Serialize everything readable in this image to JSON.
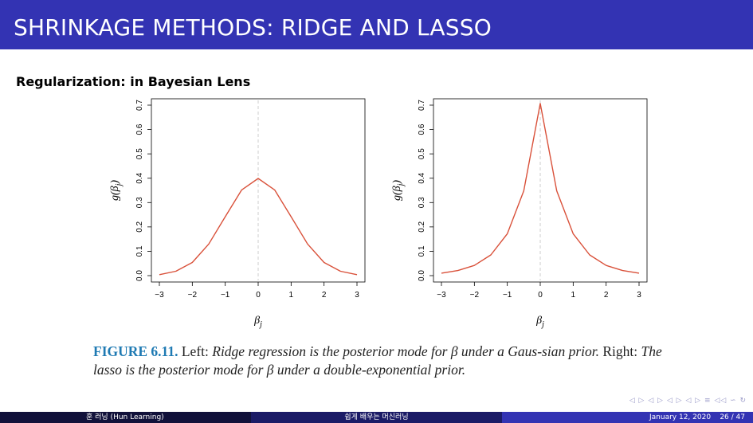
{
  "header": {
    "title": "SHRINKAGE METHODS: RIDGE AND LASSO"
  },
  "section": {
    "heading": "Regularization: in Bayesian Lens"
  },
  "chart_data": [
    {
      "type": "line",
      "name": "ridge-gaussian-prior",
      "ylabel": "g(β_j)",
      "xlabel": "β_j",
      "xlim": [
        -3,
        3
      ],
      "ylim": [
        0,
        0.7
      ],
      "x_ticks": [
        -3,
        -2,
        -1,
        0,
        1,
        2,
        3
      ],
      "y_ticks": [
        0.0,
        0.1,
        0.2,
        0.3,
        0.4,
        0.5,
        0.6,
        0.7
      ],
      "x_tick_labels": [
        "−3",
        "−2",
        "−1",
        "0",
        "1",
        "2",
        "3"
      ],
      "y_tick_labels": [
        "0.0",
        "0.1",
        "0.2",
        "0.3",
        "0.4",
        "0.5",
        "0.6",
        "0.7"
      ],
      "series": [
        {
          "color": "#d9513a",
          "x": [
            -3,
            -2.5,
            -2,
            -1.5,
            -1,
            -0.5,
            0,
            0.5,
            1,
            1.5,
            2,
            2.5,
            3
          ],
          "y": [
            0.004,
            0.018,
            0.054,
            0.13,
            0.242,
            0.352,
            0.399,
            0.352,
            0.242,
            0.13,
            0.054,
            0.018,
            0.004
          ]
        }
      ],
      "vline": 0
    },
    {
      "type": "line",
      "name": "lasso-laplace-prior",
      "ylabel": "g(β_j)",
      "xlabel": "β_j",
      "xlim": [
        -3,
        3
      ],
      "ylim": [
        0,
        0.7
      ],
      "x_ticks": [
        -3,
        -2,
        -1,
        0,
        1,
        2,
        3
      ],
      "y_ticks": [
        0.0,
        0.1,
        0.2,
        0.3,
        0.4,
        0.5,
        0.6,
        0.7
      ],
      "x_tick_labels": [
        "−3",
        "−2",
        "−1",
        "0",
        "1",
        "2",
        "3"
      ],
      "y_tick_labels": [
        "0.0",
        "0.1",
        "0.2",
        "0.3",
        "0.4",
        "0.5",
        "0.6",
        "0.7"
      ],
      "series": [
        {
          "color": "#d9513a",
          "x": [
            -3,
            -2.5,
            -2,
            -1.5,
            -1,
            -0.5,
            0,
            0.5,
            1,
            1.5,
            2,
            2.5,
            3
          ],
          "y": [
            0.01,
            0.021,
            0.042,
            0.085,
            0.172,
            0.348,
            0.707,
            0.348,
            0.172,
            0.085,
            0.042,
            0.021,
            0.01
          ]
        }
      ],
      "vline": 0
    }
  ],
  "caption": {
    "label": "FIGURE 6.11.",
    "part1": " Left: ",
    "part2": "Ridge regression is the posterior mode for β under a Gaus-sian prior.",
    "part3": " Right: ",
    "part4": "The lasso is the posterior mode for β under a double-exponential prior."
  },
  "nav": {
    "symbols": "◁ ▷ ◁ ▷ ◁ ▷ ◁ ▷ ≡ ◁◁ ∽ ↻"
  },
  "footer": {
    "author": "훈 러닝 (Hun Learning)",
    "course": "쉽게 배우는 머신러닝",
    "date": "January 12, 2020",
    "page": "26 / 47"
  },
  "colors": {
    "header_bg": "#3333b3",
    "curve": "#d9513a",
    "caption_label": "#1f7ab3"
  }
}
